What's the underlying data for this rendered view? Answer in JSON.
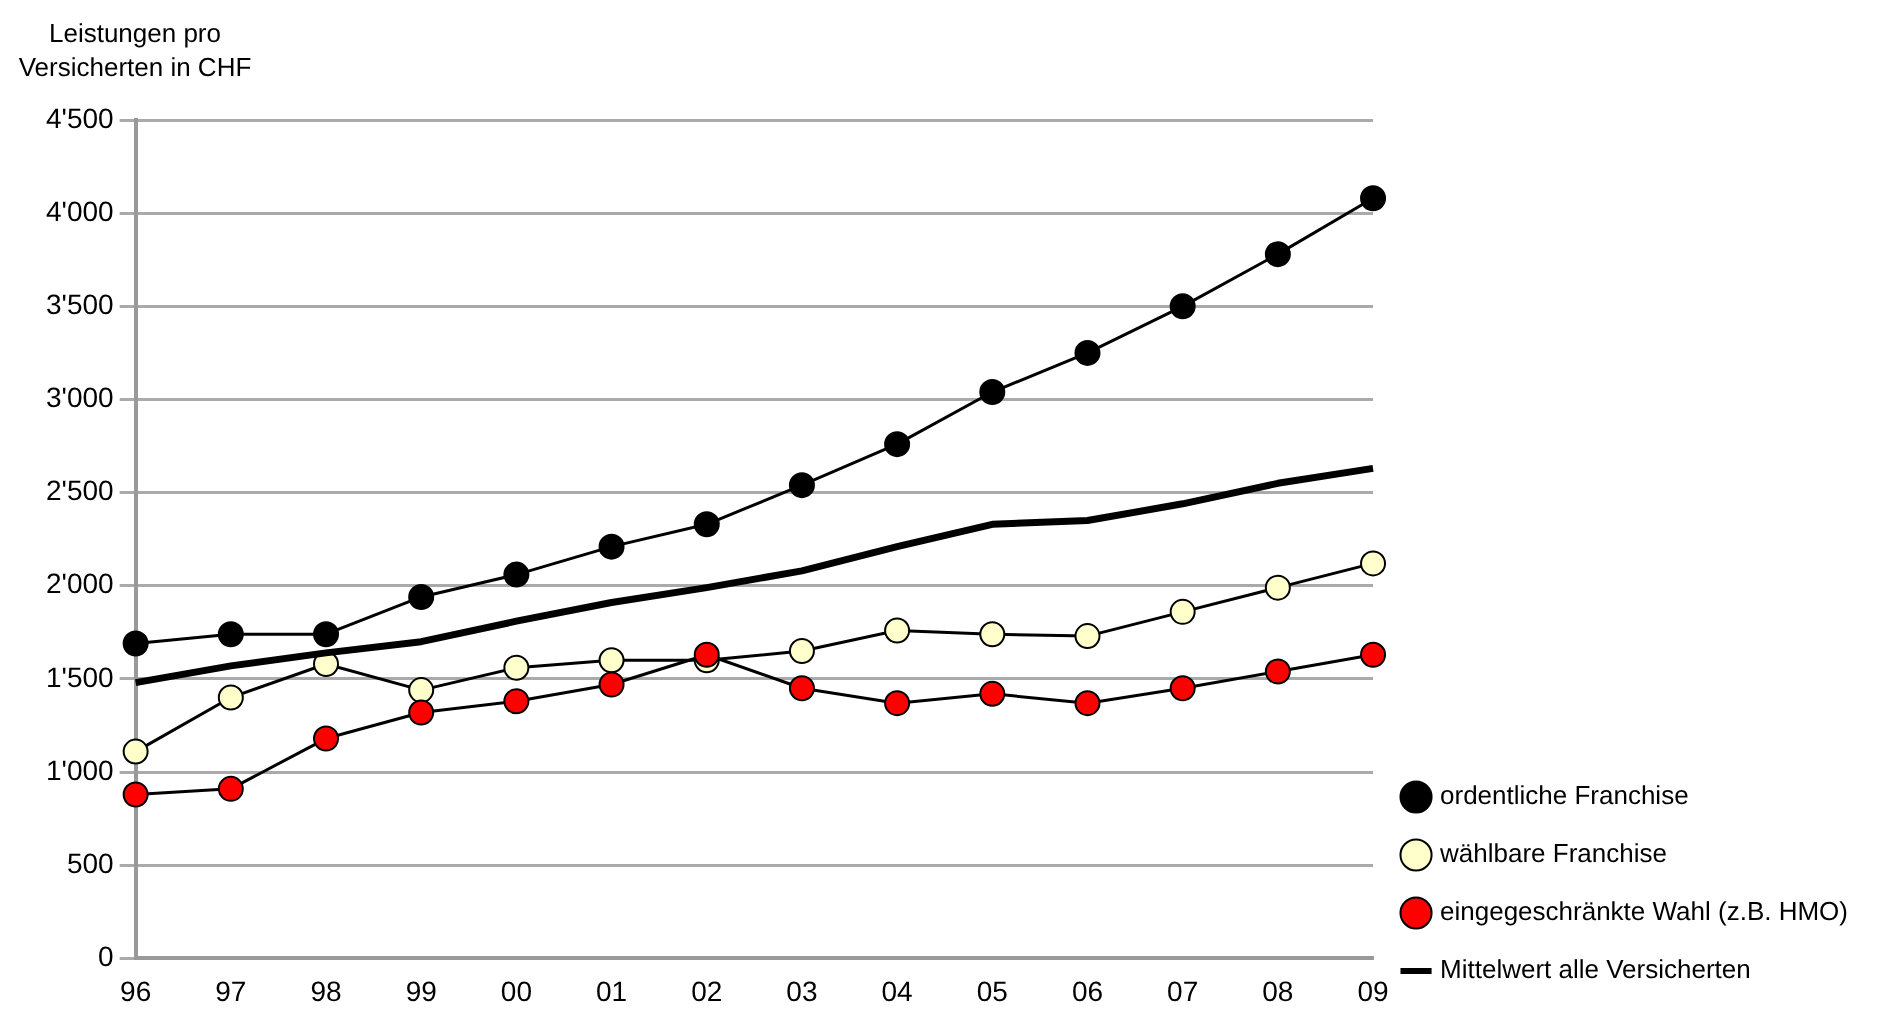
{
  "chart_data": {
    "type": "line",
    "ylabel": "Leistungen pro Versicherten in CHF",
    "categories": [
      "96",
      "97",
      "98",
      "99",
      "00",
      "01",
      "02",
      "03",
      "04",
      "05",
      "06",
      "07",
      "08",
      "09"
    ],
    "series": [
      {
        "name": "ordentliche Franchise",
        "color": "#000000",
        "marker": "circle",
        "values": [
          1690,
          1740,
          1740,
          1940,
          2060,
          2210,
          2330,
          2540,
          2760,
          3040,
          3250,
          3500,
          3780,
          4080
        ]
      },
      {
        "name": "wählbare Franchise",
        "color": "#ffffcc",
        "marker": "circle",
        "values": [
          1110,
          1400,
          1580,
          1440,
          1560,
          1600,
          1600,
          1650,
          1760,
          1740,
          1730,
          1860,
          1990,
          2120
        ]
      },
      {
        "name": "eingegeschränkte Wahl (z.B. HMO)",
        "color": "#ff0000",
        "marker": "circle",
        "values": [
          880,
          910,
          1180,
          1320,
          1380,
          1470,
          1630,
          1450,
          1370,
          1420,
          1370,
          1450,
          1540,
          1630
        ]
      },
      {
        "name": "Mittelwert alle Versicherten",
        "color": "#000000",
        "marker": "none",
        "values": [
          1480,
          1570,
          1640,
          1700,
          1810,
          1910,
          1990,
          2080,
          2210,
          2330,
          2350,
          2440,
          2550,
          2630
        ]
      }
    ],
    "ylim": [
      0,
      4500
    ],
    "yticks": [
      0,
      500,
      {
        "value": 1000,
        "label": "1'000"
      },
      {
        "value": 1500,
        "label": "1'500"
      },
      {
        "value": 2000,
        "label": "2'000"
      },
      {
        "value": 2500,
        "label": "2'500"
      },
      {
        "value": 3000,
        "label": "3'000"
      },
      {
        "value": 3500,
        "label": "3'500"
      },
      {
        "value": 4000,
        "label": "4'000"
      },
      {
        "value": 4500,
        "label": "4'500"
      }
    ],
    "grid": "y",
    "legend": "right"
  }
}
